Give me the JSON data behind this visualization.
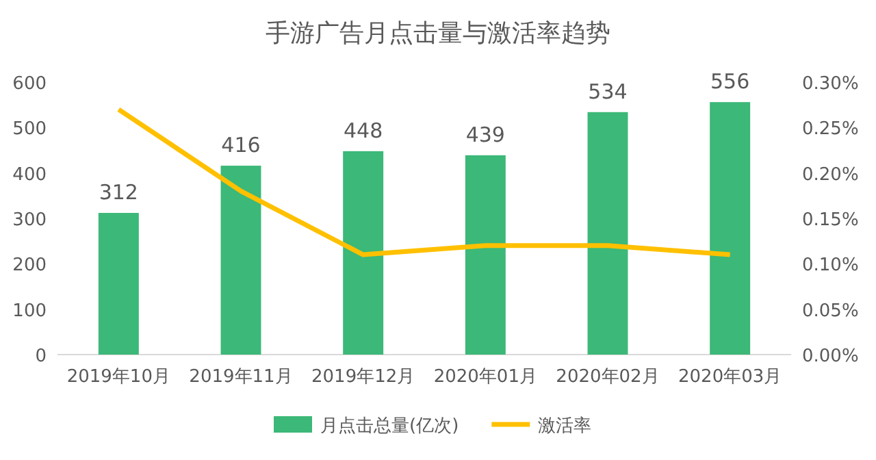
{
  "chart_data": {
    "type": "bar",
    "title": "手游广告月点击量与激活率趋势",
    "categories": [
      "2019年10月",
      "2019年11月",
      "2019年12月",
      "2020年01月",
      "2020年02月",
      "2020年03月"
    ],
    "series": [
      {
        "name": "月点击总量(亿次)",
        "color": "#3cb878",
        "values": [
          312,
          416,
          448,
          439,
          534,
          556
        ]
      },
      {
        "name": "激活率",
        "type": "line",
        "axis": "y2",
        "color": "#ffc000",
        "values": [
          0.27,
          0.18,
          0.11,
          0.12,
          0.12,
          0.11
        ]
      }
    ],
    "ylim": [
      0,
      600
    ],
    "yticks": [
      0,
      100,
      200,
      300,
      400,
      500,
      600
    ],
    "y2lim": [
      0,
      0.3
    ],
    "y2ticks": [
      {
        "value": 0,
        "label": "0.00%"
      },
      {
        "value": 0.05,
        "label": "0.05%"
      },
      {
        "value": 0.1,
        "label": "0.10%"
      },
      {
        "value": 0.15,
        "label": "0.15%"
      },
      {
        "value": 0.2,
        "label": "0.20%"
      },
      {
        "value": 0.25,
        "label": "0.25%"
      },
      {
        "value": 0.3,
        "label": "0.30%"
      }
    ],
    "value_labels": [
      "312",
      "416",
      "448",
      "439",
      "534",
      "556"
    ],
    "legend": "bottom",
    "grid": false,
    "marker": "none"
  }
}
